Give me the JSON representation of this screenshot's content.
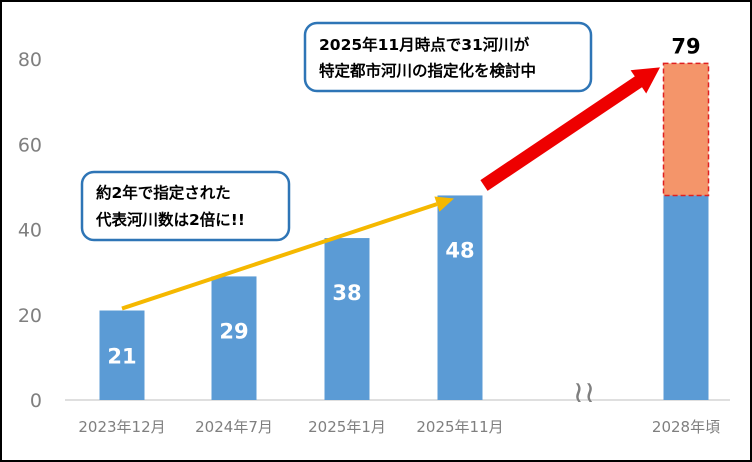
{
  "chart_data": {
    "type": "bar",
    "categories": [
      "2023年12月",
      "2024年7月",
      "2025年1月",
      "2025年11月",
      "2028年頃"
    ],
    "values": [
      21,
      29,
      38,
      48,
      79
    ],
    "projection": {
      "category": "2028年頃",
      "base": 48,
      "added": 31,
      "total": 79
    },
    "data_labels": [
      "21",
      "29",
      "38",
      "48",
      "79"
    ],
    "ylim": [
      0,
      88
    ],
    "yticks": [
      "0",
      "20",
      "40",
      "60",
      "80"
    ],
    "axis_break_symbol": "≀≀",
    "title": "",
    "xlabel": "",
    "ylabel": "",
    "grid": false,
    "legend": "none"
  },
  "annotations": {
    "callout_left": [
      "約2年で指定された",
      "代表河川数は2倍に!!"
    ],
    "callout_right": [
      "2025年11月時点で31河川が",
      "特定都市河川の指定化を検討中"
    ]
  },
  "colors": {
    "bar": "#5b9bd5",
    "projection_fill": "#f4956a",
    "projection_border": "#e02020",
    "trend_arrow": "#f5b800",
    "projection_arrow": "#ee0000",
    "callout_border": "#2e75b6",
    "axis": "#bfbfbf"
  }
}
